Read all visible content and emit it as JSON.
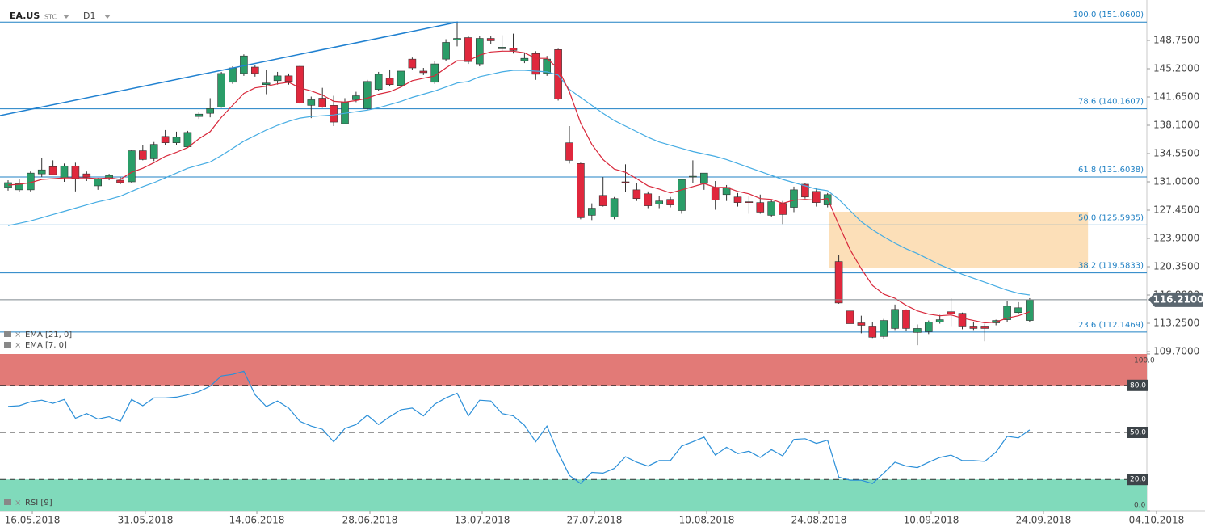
{
  "header": {
    "symbol": "EA.US",
    "type": "STC",
    "interval": "D1"
  },
  "chart_data": [
    {
      "type": "candlestick",
      "open": [
        130.3,
        130.0,
        130.0,
        132.0,
        132.9,
        131.5,
        133.0,
        132.0,
        130.5,
        131.5,
        131.2,
        131.0,
        134.9,
        133.9,
        136.7,
        135.9,
        135.4,
        139.2,
        139.6,
        140.4,
        143.5,
        144.6,
        145.4,
        143.2,
        143.7,
        144.3,
        145.5,
        140.6,
        141.5,
        140.6,
        138.3,
        141.3,
        140.2,
        142.6,
        144.0,
        143.1,
        146.4,
        144.9,
        143.5,
        146.4,
        148.8,
        149.1,
        145.8,
        149.0,
        147.7,
        147.8,
        146.2,
        147.1,
        144.6,
        147.6,
        135.9,
        133.3,
        126.8,
        129.3,
        126.6,
        131.0,
        130.0,
        129.5,
        128.2,
        128.8,
        127.4,
        131.6,
        130.8,
        130.3,
        129.4,
        129.1,
        128.5,
        128.4,
        126.8,
        128.3,
        127.8,
        130.7,
        129.8,
        128.1,
        121.0,
        114.8,
        113.3,
        112.9,
        111.6,
        112.6,
        114.9,
        112.1,
        112.2,
        113.4,
        114.7,
        114.5,
        112.9,
        112.9,
        113.3,
        113.7,
        114.6,
        113.6
      ],
      "high": [
        131.2,
        131.4,
        132.3,
        134.0,
        133.7,
        133.3,
        133.4,
        132.3,
        131.5,
        132.0,
        131.6,
        135.0,
        135.6,
        136.0,
        137.5,
        137.3,
        137.4,
        139.8,
        141.5,
        144.8,
        145.5,
        147.0,
        145.6,
        145.0,
        144.8,
        144.6,
        145.6,
        141.7,
        142.8,
        141.8,
        141.5,
        142.3,
        143.8,
        144.8,
        145.1,
        145.4,
        146.6,
        145.3,
        146.2,
        148.9,
        151.1,
        149.3,
        149.3,
        149.3,
        149.4,
        149.6,
        147.2,
        147.4,
        146.8,
        147.7,
        138.0,
        133.4,
        128.3,
        131.6,
        129.1,
        133.2,
        130.8,
        129.8,
        129.2,
        129.1,
        131.4,
        133.7,
        132.1,
        131.1,
        130.6,
        129.6,
        129.2,
        129.4,
        128.7,
        128.6,
        130.4,
        130.8,
        130.2,
        129.6,
        121.8,
        115.1,
        114.2,
        113.4,
        113.8,
        115.6,
        115.0,
        113.1,
        113.6,
        114.3,
        116.4,
        114.6,
        113.4,
        113.2,
        113.7,
        116.0,
        115.9,
        116.4
      ],
      "low": [
        129.9,
        129.7,
        129.8,
        131.6,
        131.9,
        131.0,
        129.8,
        131.1,
        130.0,
        131.2,
        130.7,
        130.9,
        133.7,
        133.6,
        135.6,
        135.6,
        135.3,
        138.9,
        139.1,
        140.3,
        143.3,
        144.3,
        144.2,
        142.0,
        143.2,
        143.2,
        140.8,
        139.0,
        140.3,
        138.0,
        138.2,
        141.0,
        140.0,
        142.4,
        143.0,
        142.7,
        145.0,
        144.4,
        143.3,
        146.2,
        148.0,
        145.8,
        145.5,
        148.3,
        147.4,
        147.1,
        145.9,
        143.8,
        144.3,
        141.2,
        133.3,
        126.3,
        126.2,
        127.9,
        126.3,
        129.7,
        128.6,
        127.7,
        127.7,
        127.8,
        127.0,
        130.8,
        130.0,
        127.5,
        128.6,
        127.9,
        127.0,
        127.0,
        126.6,
        125.7,
        127.2,
        128.9,
        127.9,
        127.8,
        115.7,
        113.0,
        112.0,
        111.4,
        111.3,
        112.4,
        112.3,
        110.5,
        111.9,
        113.2,
        112.9,
        112.5,
        112.4,
        111.0,
        113.0,
        113.4,
        114.4,
        113.4
      ],
      "close": [
        130.9,
        130.8,
        132.1,
        132.5,
        131.9,
        133.0,
        131.4,
        131.6,
        131.4,
        131.8,
        130.9,
        134.9,
        133.8,
        135.7,
        135.9,
        136.6,
        137.2,
        139.5,
        140.2,
        144.6,
        145.3,
        146.8,
        144.6,
        143.4,
        144.3,
        143.6,
        140.9,
        141.3,
        140.4,
        138.5,
        141.0,
        141.8,
        143.6,
        144.5,
        143.2,
        144.9,
        145.3,
        144.7,
        145.8,
        148.5,
        149.0,
        146.1,
        149.0,
        148.7,
        147.9,
        147.5,
        146.5,
        144.5,
        146.4,
        141.4,
        133.7,
        126.5,
        127.7,
        128.0,
        128.9,
        130.9,
        128.9,
        128.0,
        128.6,
        128.1,
        131.3,
        131.7,
        132.1,
        128.7,
        130.3,
        128.4,
        128.4,
        127.2,
        128.5,
        126.9,
        130.0,
        129.1,
        128.4,
        129.4,
        115.8,
        113.2,
        113.0,
        111.5,
        113.6,
        115.0,
        112.6,
        112.6,
        113.4,
        113.7,
        114.4,
        112.9,
        112.6,
        112.6,
        113.6,
        115.4,
        115.2,
        116.2
      ],
      "up_color": "#2a9d68",
      "down_color": "#e0283d",
      "series": [
        {
          "name": "EMA [21, 0]",
          "color": "#45ace3",
          "values": [
            125.5,
            125.8,
            126.1,
            126.5,
            126.9,
            127.3,
            127.7,
            128.1,
            128.5,
            128.8,
            129.2,
            129.8,
            130.4,
            130.9,
            131.5,
            132.1,
            132.7,
            133.1,
            133.5,
            134.3,
            135.2,
            136.1,
            136.8,
            137.5,
            138.1,
            138.6,
            139.0,
            139.2,
            139.3,
            139.4,
            139.6,
            139.8,
            140.0,
            140.3,
            140.7,
            141.1,
            141.6,
            142.0,
            142.4,
            142.9,
            143.4,
            143.6,
            144.2,
            144.5,
            144.8,
            145.0,
            145.0,
            144.9,
            144.8,
            144.4,
            142.6,
            141.6,
            140.6,
            139.6,
            138.7,
            138.0,
            137.3,
            136.6,
            136.0,
            135.6,
            135.2,
            134.8,
            134.5,
            134.2,
            133.8,
            133.3,
            132.8,
            132.3,
            131.8,
            131.3,
            130.9,
            130.5,
            130.1,
            129.9,
            128.8,
            127.4,
            126.0,
            125.0,
            124.1,
            123.3,
            122.6,
            122.0,
            121.3,
            120.6,
            120.0,
            119.4,
            118.9,
            118.4,
            117.9,
            117.4,
            117.0,
            116.8
          ]
        },
        {
          "name": "EMA [7, 0]",
          "color": "#d8283b",
          "values": [
            130.6,
            130.7,
            130.9,
            131.3,
            131.4,
            131.5,
            131.5,
            131.5,
            131.4,
            131.5,
            131.3,
            132.2,
            132.7,
            133.4,
            134.2,
            134.7,
            135.3,
            136.4,
            137.3,
            139.1,
            140.6,
            142.1,
            142.8,
            143.0,
            143.3,
            143.5,
            142.8,
            142.4,
            141.9,
            141.1,
            141.0,
            141.2,
            141.5,
            142.0,
            142.3,
            142.9,
            143.7,
            144.0,
            144.3,
            145.3,
            146.2,
            146.2,
            146.9,
            147.3,
            147.4,
            147.4,
            147.2,
            146.5,
            146.5,
            145.2,
            142.3,
            138.4,
            135.7,
            133.8,
            132.6,
            132.2,
            131.4,
            130.5,
            130.1,
            129.6,
            130.0,
            130.4,
            130.8,
            130.3,
            130.3,
            129.8,
            129.5,
            128.9,
            128.8,
            128.3,
            128.7,
            128.8,
            128.7,
            128.9,
            125.6,
            122.5,
            120.1,
            118.0,
            116.9,
            116.4,
            115.5,
            114.8,
            114.4,
            114.2,
            114.3,
            113.9,
            113.6,
            113.3,
            113.4,
            113.9,
            114.2,
            114.7
          ]
        }
      ],
      "xlim": [
        -0.72,
        101.44
      ],
      "ylim": [
        109.5,
        153.82
      ],
      "yticks": [
        {
          "value": 148.75,
          "label": "148.7500"
        },
        {
          "value": 145.2,
          "label": "145.2000"
        },
        {
          "value": 141.65,
          "label": "141.6500"
        },
        {
          "value": 138.1,
          "label": "138.1000"
        },
        {
          "value": 134.55,
          "label": "134.5500"
        },
        {
          "value": 131.0,
          "label": "131.0000"
        },
        {
          "value": 127.45,
          "label": "127.4500"
        },
        {
          "value": 123.9,
          "label": "123.9000"
        },
        {
          "value": 120.35,
          "label": "120.3500"
        },
        {
          "value": 116.8,
          "label": "116.8000"
        },
        {
          "value": 113.25,
          "label": "113.2500"
        },
        {
          "value": 109.7,
          "label": "109.7000"
        }
      ],
      "levels": [
        {
          "value": 151.06,
          "label": "100.0 (151.0600)"
        },
        {
          "value": 140.1607,
          "label": "78.6 (140.1607)"
        },
        {
          "value": 131.6038,
          "label": "61.8 (131.6038)"
        },
        {
          "value": 125.5935,
          "label": "50.0 (125.5935)"
        },
        {
          "value": 119.5833,
          "label": "38.2 (119.5833)"
        },
        {
          "value": 112.1469,
          "label": "23.6 (112.1469)"
        }
      ],
      "level_color": "#1f80c4",
      "last_price": {
        "value": 116.21,
        "label": "116.2100"
      },
      "trendline": {
        "x": [
          -0.72,
          40.07
        ],
        "y": [
          139.32,
          151.06
        ],
        "color": "#1f80d0"
      },
      "zone": {
        "x": [
          73.1,
          96.2
        ],
        "y": [
          120.15,
          127.25
        ],
        "color": "#fcd9ab"
      }
    },
    {
      "type": "line",
      "series": [
        {
          "name": "RSI [9]",
          "color": "#2b8fd8",
          "values": [
            66.6,
            67.0,
            69.5,
            70.5,
            68.5,
            71.0,
            59.0,
            62.0,
            58.5,
            60.0,
            57.0,
            71.0,
            67.0,
            72.0,
            72.0,
            72.5,
            74.0,
            76.0,
            79.5,
            86.0,
            87.0,
            89.0,
            74.0,
            66.5,
            70.0,
            65.5,
            57.0,
            54.0,
            52.0,
            44.0,
            52.5,
            55.0,
            61.0,
            55.0,
            60.0,
            64.5,
            65.5,
            60.5,
            68.0,
            72.0,
            75.0,
            60.5,
            70.5,
            70.0,
            62.0,
            60.5,
            54.5,
            44.0,
            54.0,
            37.0,
            22.6,
            17.4,
            24.5,
            24.0,
            27.0,
            34.5,
            31.0,
            28.5,
            32.0,
            32.0,
            41.3,
            44.0,
            47.0,
            35.5,
            40.5,
            36.5,
            38.0,
            34.0,
            39.0,
            35.0,
            45.5,
            46.0,
            43.0,
            45.0,
            21.5,
            19.5,
            19.5,
            17.4,
            24.0,
            31.0,
            28.5,
            27.5,
            31.0,
            34.0,
            35.5,
            32.0,
            32.0,
            31.5,
            37.5,
            47.5,
            46.5,
            51.6
          ]
        }
      ],
      "xlim": [
        -0.72,
        101.44
      ],
      "ylim": [
        0,
        100
      ],
      "yticks": [
        {
          "value": 100,
          "label": "100.0"
        },
        {
          "value": 80,
          "label": "80.0"
        },
        {
          "value": 50,
          "label": "50.0"
        },
        {
          "value": 20,
          "label": "20.0"
        },
        {
          "value": 0,
          "label": "0.0"
        }
      ],
      "zones": [
        {
          "from": 80,
          "to": 100,
          "color": "#e27a77"
        },
        {
          "from": 0,
          "to": 20,
          "color": "#80dabb"
        }
      ],
      "xticks": [
        {
          "value": 2.16,
          "label": "16.05.2018"
        },
        {
          "value": 12.23,
          "label": "31.05.2018"
        },
        {
          "value": 22.16,
          "label": "14.06.2018"
        },
        {
          "value": 32.23,
          "label": "28.06.2018"
        },
        {
          "value": 42.23,
          "label": "13.07.2018"
        },
        {
          "value": 52.23,
          "label": "27.07.2018"
        },
        {
          "value": 62.23,
          "label": "10.08.2018"
        },
        {
          "value": 72.23,
          "label": "24.08.2018"
        },
        {
          "value": 82.23,
          "label": "10.09.2018"
        },
        {
          "value": 92.23,
          "label": "24.09.2018"
        },
        {
          "value": 102.3,
          "label": "04.10.2018"
        }
      ]
    }
  ]
}
